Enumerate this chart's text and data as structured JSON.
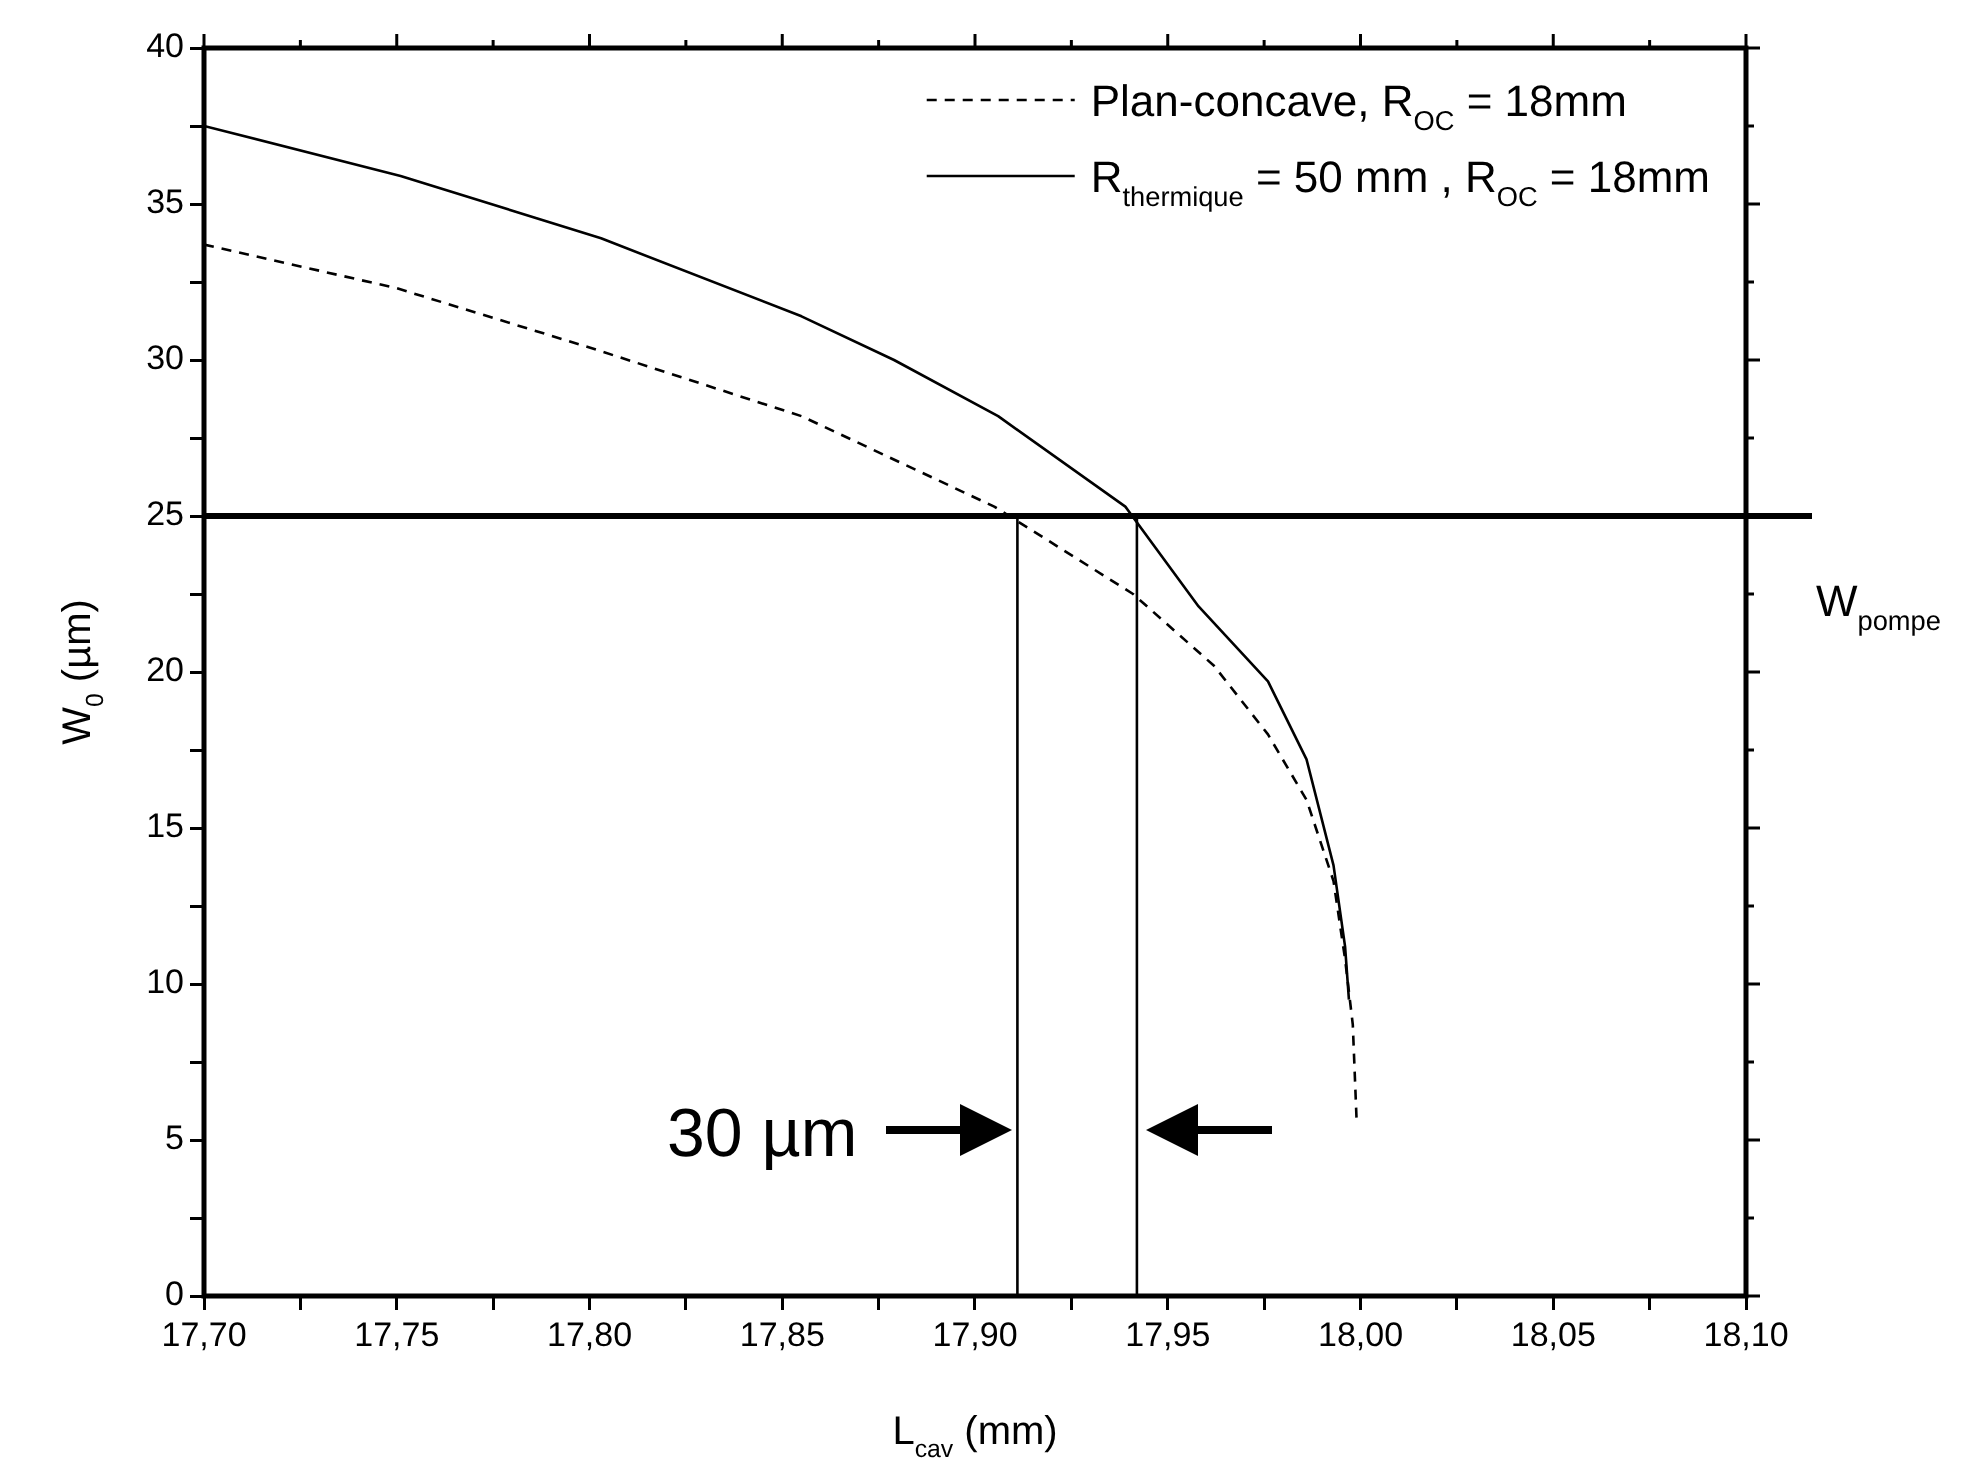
{
  "chart_data": {
    "type": "line",
    "xlabel": "L$_{cav}$ (mm)",
    "ylabel": "W$_{0}$ (µm)",
    "xlim": [
      17.7,
      18.1
    ],
    "xticks": [
      {
        "value": 17.7,
        "label": "17,70"
      },
      {
        "value": 17.725,
        "label": null
      },
      {
        "value": 17.75,
        "label": "17,75"
      },
      {
        "value": 17.775,
        "label": null
      },
      {
        "value": 17.8,
        "label": "17,80"
      },
      {
        "value": 17.825,
        "label": null
      },
      {
        "value": 17.85,
        "label": "17,85"
      },
      {
        "value": 17.875,
        "label": null
      },
      {
        "value": 17.9,
        "label": "17,90"
      },
      {
        "value": 17.925,
        "label": null
      },
      {
        "value": 17.95,
        "label": "17,95"
      },
      {
        "value": 17.975,
        "label": null
      },
      {
        "value": 18.0,
        "label": "18,00"
      },
      {
        "value": 18.025,
        "label": null
      },
      {
        "value": 18.05,
        "label": "18,05"
      },
      {
        "value": 18.075,
        "label": null
      },
      {
        "value": 18.1,
        "label": "18,10"
      }
    ],
    "ylim": [
      0,
      40
    ],
    "yticks": [
      0,
      {
        "value": 2.5,
        "label": null
      },
      5,
      {
        "value": 7.5,
        "label": null
      },
      10,
      {
        "value": 12.5,
        "label": null
      },
      15,
      {
        "value": 17.5,
        "label": null
      },
      20,
      {
        "value": 22.5,
        "label": null
      },
      25,
      {
        "value": 27.5,
        "label": null
      },
      30,
      {
        "value": 32.5,
        "label": null
      },
      35,
      {
        "value": 37.5,
        "label": null
      },
      40
    ],
    "series": [
      {
        "name": "Plan-concave, R$_{OC}$ = 18mm",
        "color": "#000000",
        "line_style": "dashed",
        "x": [
          17.7,
          17.75,
          17.8,
          17.855,
          17.905,
          17.941,
          17.962,
          17.976,
          17.986,
          17.993,
          17.996,
          17.998,
          17.999
        ],
        "values": [
          33.7,
          32.3,
          30.4,
          28.2,
          25.3,
          22.5,
          20.2,
          18.0,
          15.9,
          13.3,
          10.8,
          8.7,
          5.6
        ]
      },
      {
        "name": "R$_{thermique}$ = 50 mm , R$_{OC}$ = 18mm",
        "color": "#000000",
        "line_style": "solid",
        "x": [
          17.7,
          17.751,
          17.803,
          17.855,
          17.879,
          17.906,
          17.939,
          17.958,
          17.976,
          17.986,
          17.993,
          17.996,
          17.997
        ],
        "values": [
          37.5,
          35.9,
          33.9,
          31.4,
          30.0,
          28.2,
          25.3,
          22.1,
          19.7,
          17.2,
          13.8,
          11.2,
          9.5
        ]
      },
      {
        "color": "#000000",
        "line_style": "solid",
        "x": [
          17.911,
          17.911
        ],
        "values": [
          0,
          25
        ]
      },
      {
        "color": "#000000",
        "line_style": "solid",
        "x": [
          17.942,
          17.942
        ],
        "values": [
          0,
          25
        ]
      }
    ],
    "ref_lines": [
      {
        "axis": "y",
        "value": 25,
        "label": "W$_{pompe}$",
        "color": "#000000"
      }
    ],
    "annotations": [
      "30 µm"
    ],
    "legend": "top right",
    "marker": "none",
    "grid": false
  }
}
